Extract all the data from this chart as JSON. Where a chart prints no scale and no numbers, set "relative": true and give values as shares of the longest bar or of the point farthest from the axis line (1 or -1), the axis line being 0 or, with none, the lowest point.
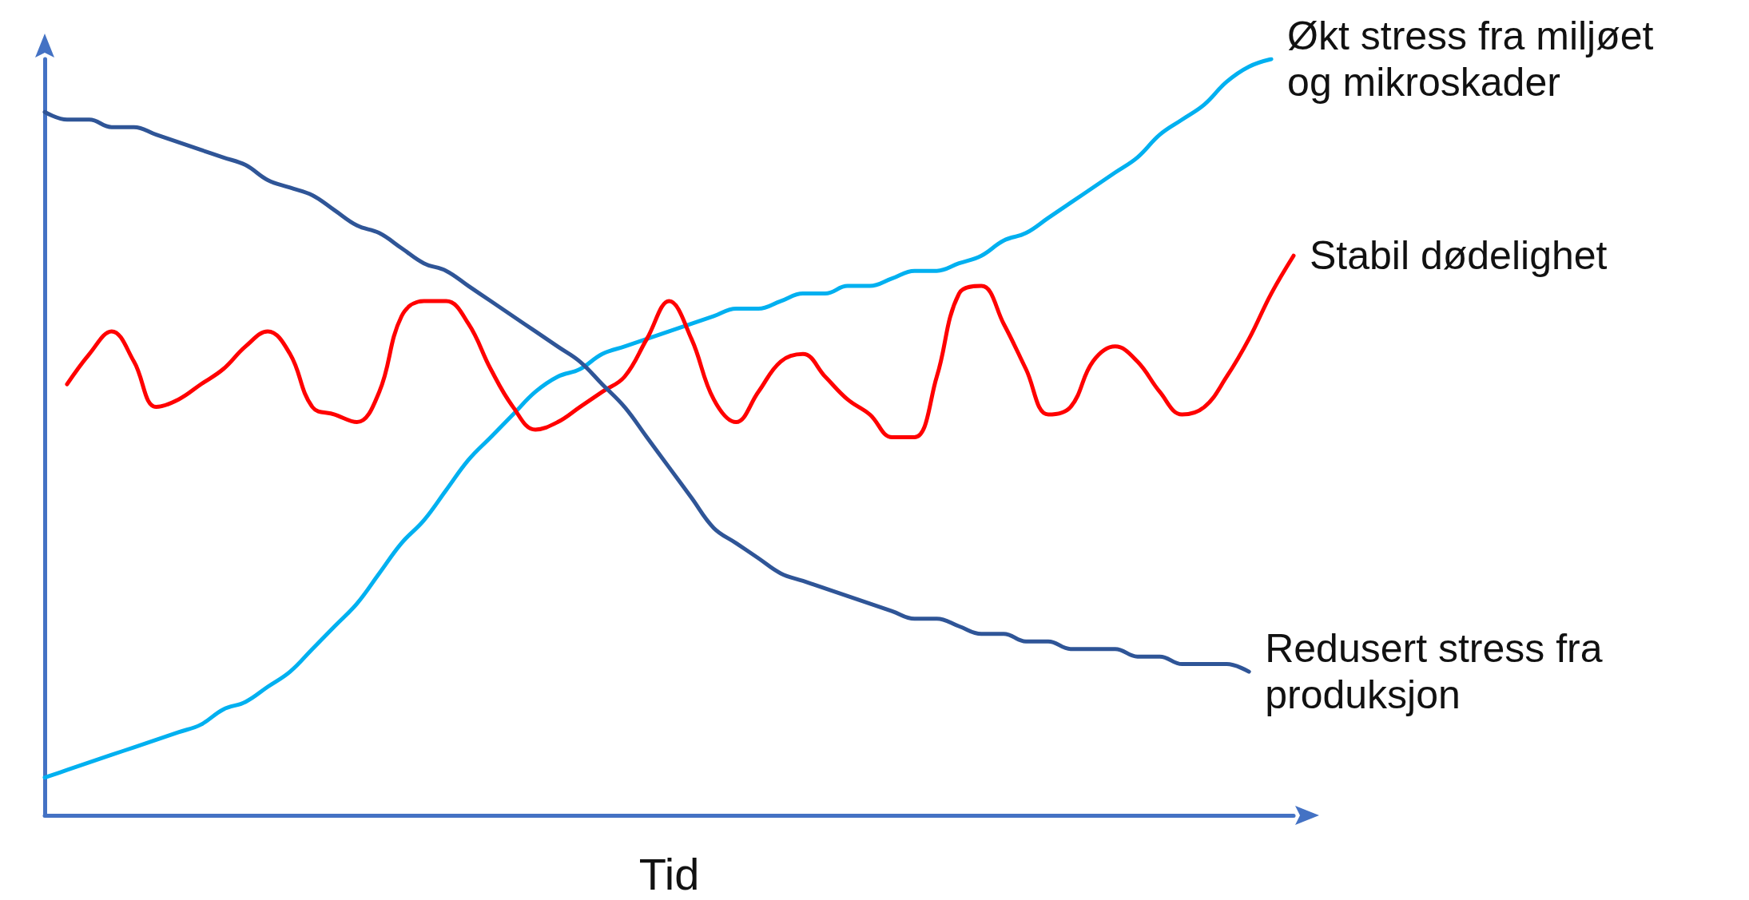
{
  "chart_data": {
    "type": "line",
    "xlabel": "Tid",
    "relative": true,
    "grid": false,
    "legend": false,
    "marker": "none",
    "line_style": "solid",
    "categories": [
      null,
      null,
      null,
      null,
      null,
      null,
      null,
      null,
      null,
      null,
      null,
      null,
      null,
      null,
      null,
      null,
      null,
      null,
      null,
      null,
      null,
      null,
      null,
      null,
      null,
      null,
      null,
      null,
      null,
      null,
      null,
      null,
      null,
      null,
      null,
      null,
      null,
      null,
      null,
      null,
      null,
      null,
      null,
      null,
      null,
      null,
      null,
      null,
      null,
      null,
      null,
      null,
      null,
      null,
      null,
      null,
      null
    ],
    "series": [
      {
        "name": "Økt stress fra miljøet og mikroskader",
        "color": "#00b0f0",
        "values": [
          0.05,
          0.06,
          0.07,
          0.08,
          0.09,
          0.1,
          0.11,
          0.12,
          0.14,
          0.15,
          0.17,
          0.19,
          0.22,
          0.25,
          0.28,
          0.32,
          0.36,
          0.39,
          0.43,
          0.47,
          0.5,
          0.53,
          0.56,
          0.58,
          0.59,
          0.61,
          0.62,
          0.63,
          0.64,
          0.65,
          0.66,
          0.67,
          0.67,
          0.68,
          0.69,
          0.69,
          0.7,
          0.7,
          0.71,
          0.72,
          0.72,
          0.73,
          0.74,
          0.76,
          0.77,
          0.79,
          0.81,
          0.83,
          0.85,
          0.87,
          0.9,
          0.92,
          0.94,
          0.97,
          0.99,
          1,
          null
        ]
      },
      {
        "name": "Stabil dødelighet",
        "color": "#ff0000",
        "values": [
          null,
          0.57,
          0.61,
          0.64,
          0.6,
          0.54,
          0.55,
          0.57,
          0.59,
          0.62,
          0.64,
          0.61,
          0.54,
          0.53,
          0.52,
          0.56,
          0.66,
          0.68,
          0.68,
          0.65,
          0.59,
          0.54,
          0.51,
          0.52,
          0.54,
          0.56,
          0.58,
          0.63,
          0.68,
          0.63,
          0.55,
          0.52,
          0.56,
          0.6,
          0.61,
          0.58,
          0.55,
          0.53,
          0.5,
          0.5,
          0.58,
          0.69,
          0.7,
          0.65,
          0.59,
          0.53,
          0.54,
          0.6,
          0.62,
          0.6,
          0.56,
          0.53,
          0.54,
          0.58,
          0.63,
          0.69,
          0.74
        ]
      },
      {
        "name": "Redusert stress fra produksjon",
        "color": "#2f5597",
        "values": [
          0.93,
          0.92,
          0.92,
          0.91,
          0.91,
          0.9,
          0.89,
          0.88,
          0.87,
          0.86,
          0.84,
          0.83,
          0.82,
          0.8,
          0.78,
          0.77,
          0.75,
          0.73,
          0.72,
          0.7,
          0.68,
          0.66,
          0.64,
          0.62,
          0.6,
          0.57,
          0.54,
          0.5,
          0.46,
          0.42,
          0.38,
          0.36,
          0.34,
          0.32,
          0.31,
          0.3,
          0.29,
          0.28,
          0.27,
          0.26,
          0.26,
          0.25,
          0.24,
          0.24,
          0.23,
          0.23,
          0.22,
          0.22,
          0.22,
          0.21,
          0.21,
          0.2,
          0.2,
          0.2,
          0.19,
          null,
          null
        ]
      }
    ]
  }
}
